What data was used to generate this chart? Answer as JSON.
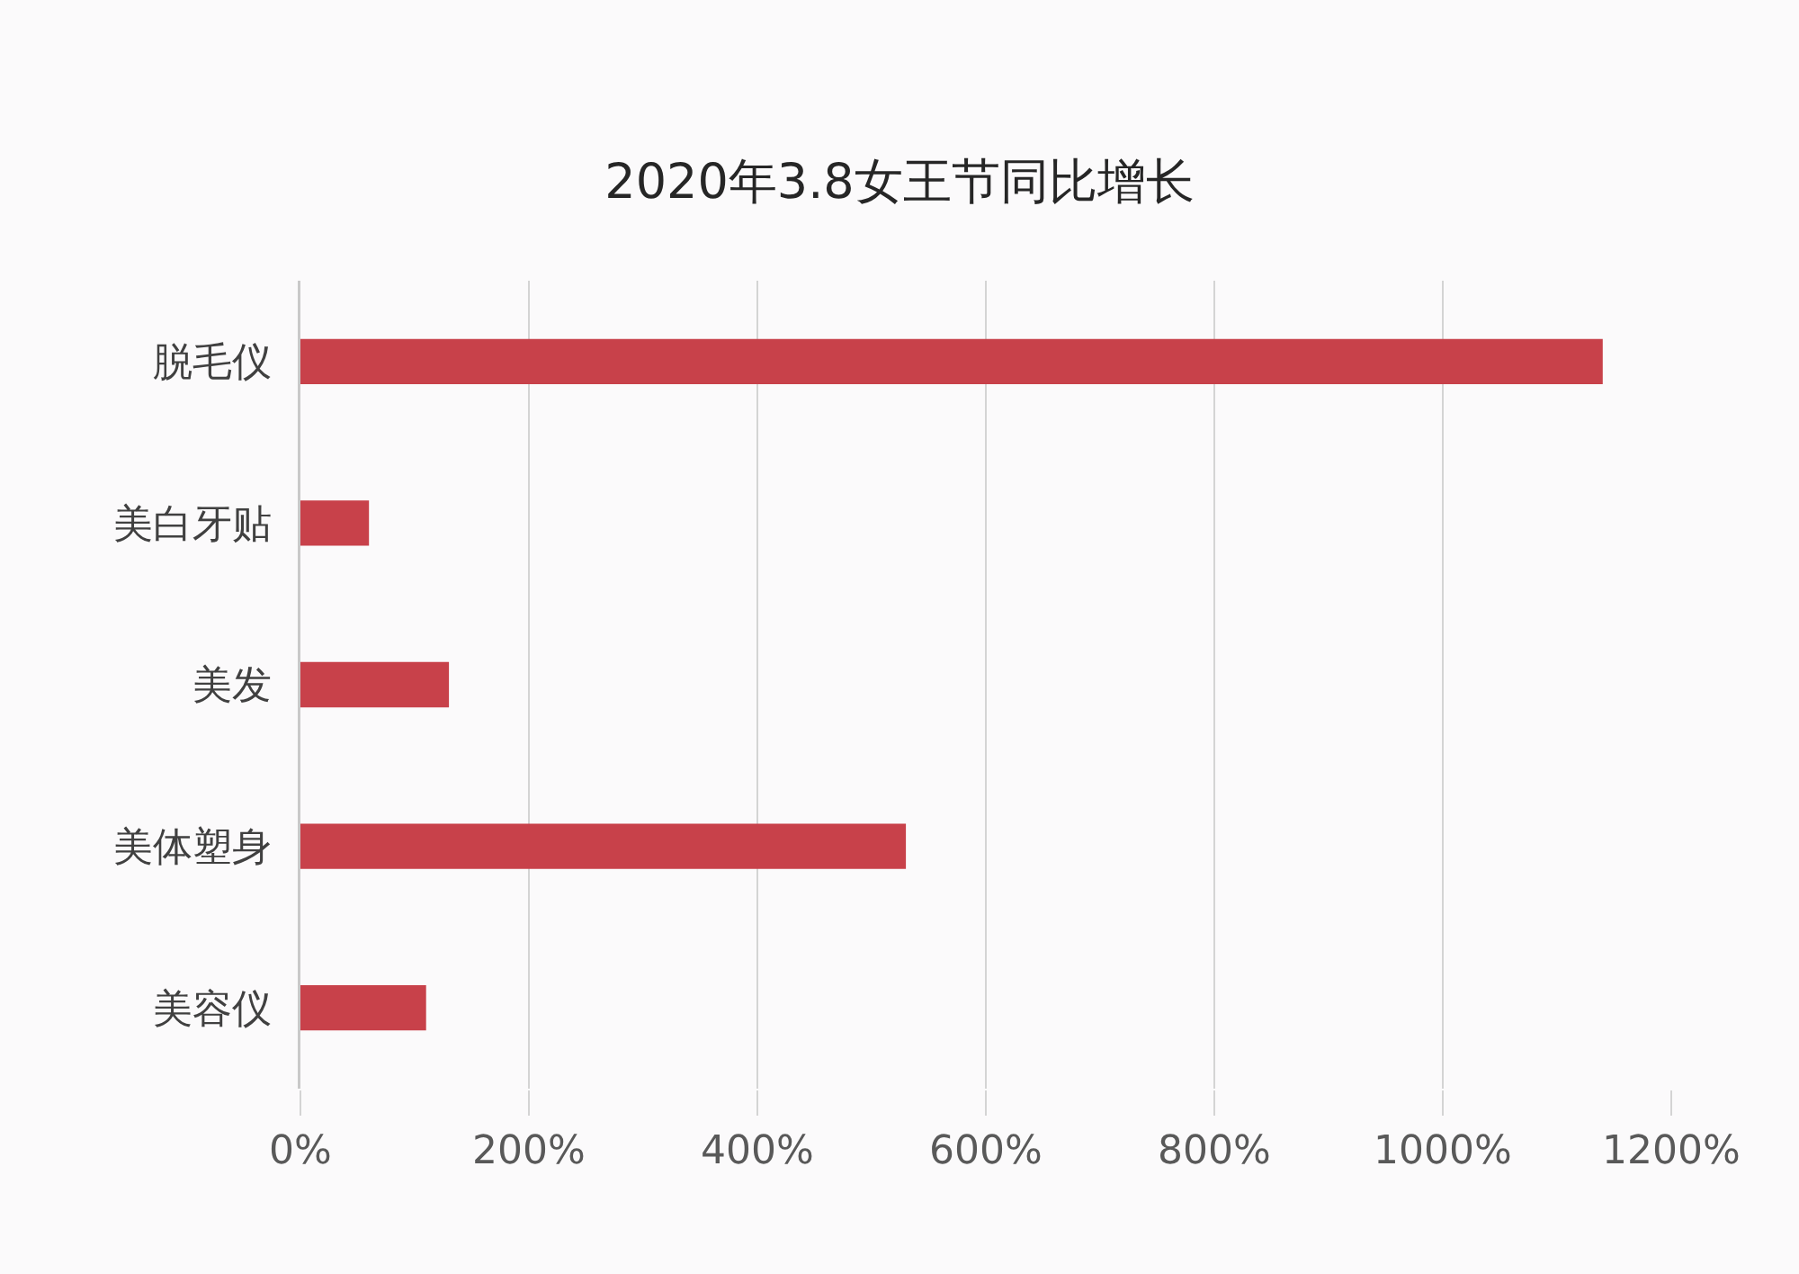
{
  "chart_data": {
    "type": "bar",
    "orientation": "horizontal",
    "title": "2020年3.8女王节同比增长",
    "categories": [
      "脱毛仪",
      "美白牙贴",
      "美发",
      "美体塑身",
      "美容仪"
    ],
    "values": [
      1140,
      60,
      130,
      530,
      110
    ],
    "color": "#c8414a",
    "xlim": [
      0,
      1200
    ],
    "xticks": [
      {
        "value": 0,
        "label": "0%"
      },
      {
        "value": 200,
        "label": "200%"
      },
      {
        "value": 400,
        "label": "400%"
      },
      {
        "value": 600,
        "label": "600%"
      },
      {
        "value": 800,
        "label": "800%"
      },
      {
        "value": 1000,
        "label": "1000%"
      },
      {
        "value": 1200,
        "label": "1200%"
      }
    ],
    "grid": "x"
  }
}
